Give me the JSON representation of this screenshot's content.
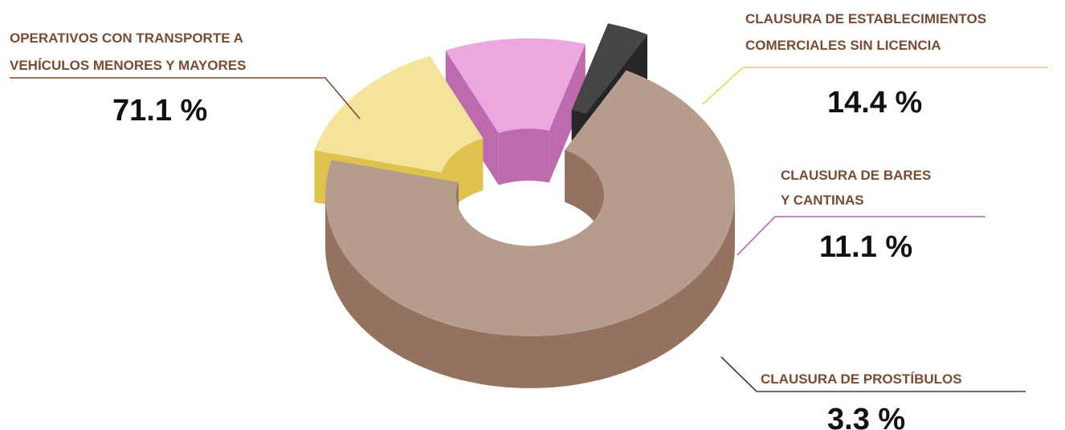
{
  "chart_data": {
    "type": "pie",
    "variant": "3d-donut-exploded",
    "slices": [
      {
        "label_lines": [
          "OPERATIVOS CON TRANSPORTE A",
          "VEHÍCULOS MENORES Y MAYORES"
        ],
        "value": 71.1,
        "value_label": "71.1 %",
        "color": "#b59c8c",
        "side_color": "#93735f",
        "label_color": "#7a4b33"
      },
      {
        "label_lines": [
          "CLAUSURA DE ESTABLECIMIENTOS",
          "COMERCIALES SIN LICENCIA"
        ],
        "value": 14.4,
        "value_label": "14.4 %",
        "color": "#f4e39a",
        "side_color": "#dfc14e",
        "label_color": "#7a4b33"
      },
      {
        "label_lines": [
          "CLAUSURA DE BARES",
          "Y CANTINAS"
        ],
        "value": 11.1,
        "value_label": "11.1 %",
        "color": "#eba8de",
        "side_color": "#bd6bae",
        "label_color": "#7a4b33"
      },
      {
        "label_lines": [
          "CLAUSURA DE PROSTÍBULOS"
        ],
        "value": 3.3,
        "value_label": "3.3 %",
        "color": "#454545",
        "side_color": "#262626",
        "label_color": "#7a4b33"
      }
    ]
  }
}
